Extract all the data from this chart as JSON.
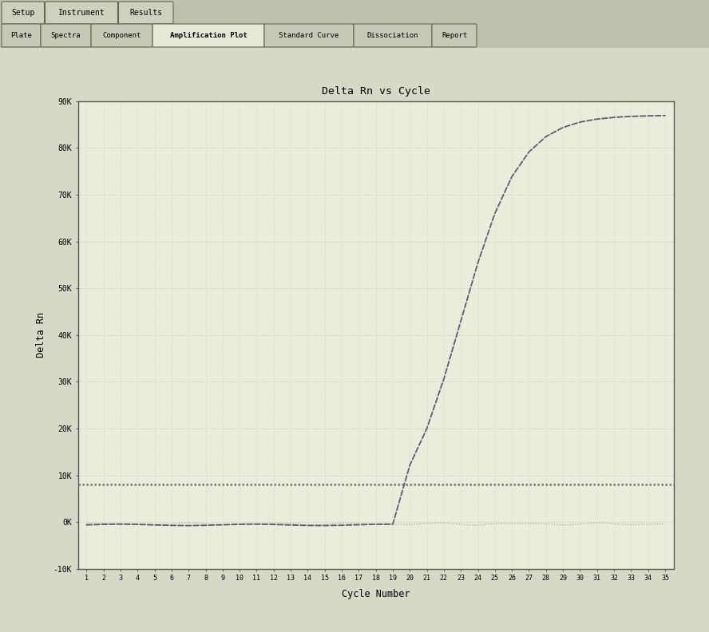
{
  "title": "Delta Rn vs Cycle",
  "xlabel": "Cycle Number",
  "ylabel": "Delta Rn",
  "ylim": [
    -10000,
    90000
  ],
  "yticks": [
    -10000,
    0,
    10000,
    20000,
    30000,
    40000,
    50000,
    60000,
    70000,
    80000,
    90000
  ],
  "ytick_labels": [
    "-10K",
    "0K",
    "10K",
    "20K",
    "30K",
    "40K",
    "50K",
    "60K",
    "70K",
    "80K",
    "90K"
  ],
  "xlim": [
    0.5,
    35.5
  ],
  "xticks": [
    1,
    2,
    3,
    4,
    5,
    6,
    7,
    8,
    9,
    10,
    11,
    12,
    13,
    14,
    15,
    16,
    17,
    18,
    19,
    20,
    21,
    22,
    23,
    24,
    25,
    26,
    27,
    28,
    29,
    30,
    31,
    32,
    33,
    34,
    35
  ],
  "threshold_y": 8000,
  "threshold_color": "#777777",
  "curve_color": "#555566",
  "baseline_color": "#888888",
  "bg_color": "#d8d8c8",
  "plot_bg": "#ececdc",
  "tab_row1_tabs": [
    "Setup",
    "Instrument",
    "Results"
  ],
  "tab_row2_tabs": [
    "Plate",
    "Spectra",
    "Component",
    "Amplification Plot",
    "Standard Curve",
    "Dissociation",
    "Report"
  ],
  "tab_active": "Amplification Plot",
  "tab_bg": "#b0b0a0",
  "tab_inactive_fc": "#c8c8b8",
  "tab_active_fc": "#e8e8d8",
  "header_bg": "#c0c0b0"
}
